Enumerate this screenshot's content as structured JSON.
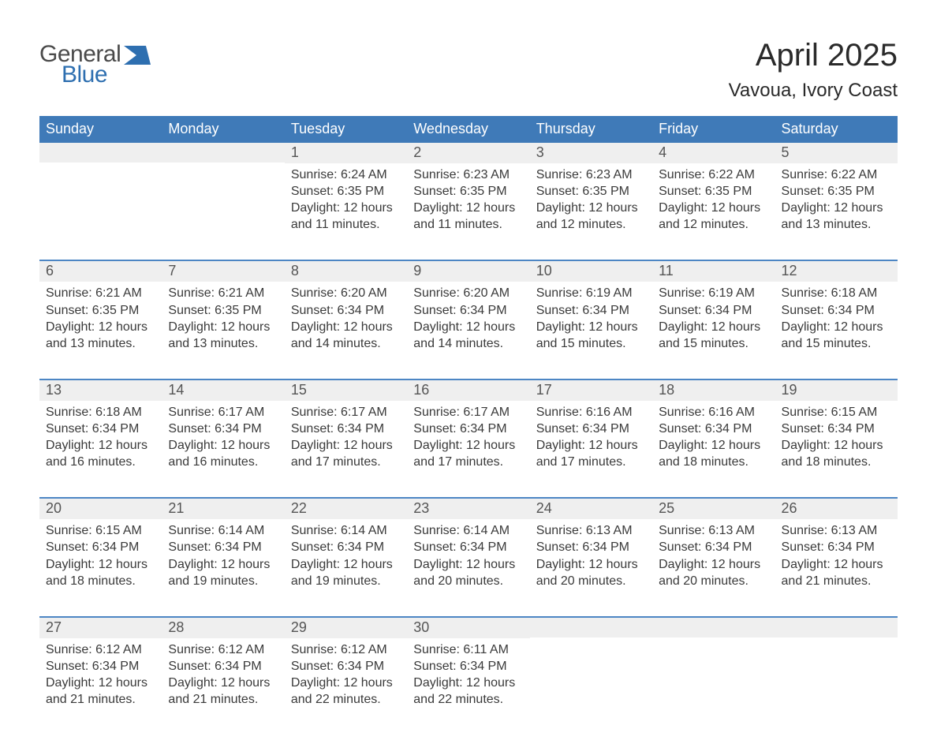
{
  "logo": {
    "line1": "General",
    "line2": "Blue",
    "icon_color": "#2e6fb0"
  },
  "header": {
    "month_title": "April 2025",
    "location": "Vavoua, Ivory Coast"
  },
  "colors": {
    "header_blue": "#3f7ab8",
    "row_separator": "#4d86c4",
    "daynum_bg": "#efefef",
    "background": "#ffffff",
    "text": "#3a3a3a"
  },
  "calendar": {
    "weekday_labels": [
      "Sunday",
      "Monday",
      "Tuesday",
      "Wednesday",
      "Thursday",
      "Friday",
      "Saturday"
    ],
    "weeks": [
      [
        null,
        null,
        {
          "day": "1",
          "sunrise": "Sunrise: 6:24 AM",
          "sunset": "Sunset: 6:35 PM",
          "daylight1": "Daylight: 12 hours",
          "daylight2": "and 11 minutes."
        },
        {
          "day": "2",
          "sunrise": "Sunrise: 6:23 AM",
          "sunset": "Sunset: 6:35 PM",
          "daylight1": "Daylight: 12 hours",
          "daylight2": "and 11 minutes."
        },
        {
          "day": "3",
          "sunrise": "Sunrise: 6:23 AM",
          "sunset": "Sunset: 6:35 PM",
          "daylight1": "Daylight: 12 hours",
          "daylight2": "and 12 minutes."
        },
        {
          "day": "4",
          "sunrise": "Sunrise: 6:22 AM",
          "sunset": "Sunset: 6:35 PM",
          "daylight1": "Daylight: 12 hours",
          "daylight2": "and 12 minutes."
        },
        {
          "day": "5",
          "sunrise": "Sunrise: 6:22 AM",
          "sunset": "Sunset: 6:35 PM",
          "daylight1": "Daylight: 12 hours",
          "daylight2": "and 13 minutes."
        }
      ],
      [
        {
          "day": "6",
          "sunrise": "Sunrise: 6:21 AM",
          "sunset": "Sunset: 6:35 PM",
          "daylight1": "Daylight: 12 hours",
          "daylight2": "and 13 minutes."
        },
        {
          "day": "7",
          "sunrise": "Sunrise: 6:21 AM",
          "sunset": "Sunset: 6:35 PM",
          "daylight1": "Daylight: 12 hours",
          "daylight2": "and 13 minutes."
        },
        {
          "day": "8",
          "sunrise": "Sunrise: 6:20 AM",
          "sunset": "Sunset: 6:34 PM",
          "daylight1": "Daylight: 12 hours",
          "daylight2": "and 14 minutes."
        },
        {
          "day": "9",
          "sunrise": "Sunrise: 6:20 AM",
          "sunset": "Sunset: 6:34 PM",
          "daylight1": "Daylight: 12 hours",
          "daylight2": "and 14 minutes."
        },
        {
          "day": "10",
          "sunrise": "Sunrise: 6:19 AM",
          "sunset": "Sunset: 6:34 PM",
          "daylight1": "Daylight: 12 hours",
          "daylight2": "and 15 minutes."
        },
        {
          "day": "11",
          "sunrise": "Sunrise: 6:19 AM",
          "sunset": "Sunset: 6:34 PM",
          "daylight1": "Daylight: 12 hours",
          "daylight2": "and 15 minutes."
        },
        {
          "day": "12",
          "sunrise": "Sunrise: 6:18 AM",
          "sunset": "Sunset: 6:34 PM",
          "daylight1": "Daylight: 12 hours",
          "daylight2": "and 15 minutes."
        }
      ],
      [
        {
          "day": "13",
          "sunrise": "Sunrise: 6:18 AM",
          "sunset": "Sunset: 6:34 PM",
          "daylight1": "Daylight: 12 hours",
          "daylight2": "and 16 minutes."
        },
        {
          "day": "14",
          "sunrise": "Sunrise: 6:17 AM",
          "sunset": "Sunset: 6:34 PM",
          "daylight1": "Daylight: 12 hours",
          "daylight2": "and 16 minutes."
        },
        {
          "day": "15",
          "sunrise": "Sunrise: 6:17 AM",
          "sunset": "Sunset: 6:34 PM",
          "daylight1": "Daylight: 12 hours",
          "daylight2": "and 17 minutes."
        },
        {
          "day": "16",
          "sunrise": "Sunrise: 6:17 AM",
          "sunset": "Sunset: 6:34 PM",
          "daylight1": "Daylight: 12 hours",
          "daylight2": "and 17 minutes."
        },
        {
          "day": "17",
          "sunrise": "Sunrise: 6:16 AM",
          "sunset": "Sunset: 6:34 PM",
          "daylight1": "Daylight: 12 hours",
          "daylight2": "and 17 minutes."
        },
        {
          "day": "18",
          "sunrise": "Sunrise: 6:16 AM",
          "sunset": "Sunset: 6:34 PM",
          "daylight1": "Daylight: 12 hours",
          "daylight2": "and 18 minutes."
        },
        {
          "day": "19",
          "sunrise": "Sunrise: 6:15 AM",
          "sunset": "Sunset: 6:34 PM",
          "daylight1": "Daylight: 12 hours",
          "daylight2": "and 18 minutes."
        }
      ],
      [
        {
          "day": "20",
          "sunrise": "Sunrise: 6:15 AM",
          "sunset": "Sunset: 6:34 PM",
          "daylight1": "Daylight: 12 hours",
          "daylight2": "and 18 minutes."
        },
        {
          "day": "21",
          "sunrise": "Sunrise: 6:14 AM",
          "sunset": "Sunset: 6:34 PM",
          "daylight1": "Daylight: 12 hours",
          "daylight2": "and 19 minutes."
        },
        {
          "day": "22",
          "sunrise": "Sunrise: 6:14 AM",
          "sunset": "Sunset: 6:34 PM",
          "daylight1": "Daylight: 12 hours",
          "daylight2": "and 19 minutes."
        },
        {
          "day": "23",
          "sunrise": "Sunrise: 6:14 AM",
          "sunset": "Sunset: 6:34 PM",
          "daylight1": "Daylight: 12 hours",
          "daylight2": "and 20 minutes."
        },
        {
          "day": "24",
          "sunrise": "Sunrise: 6:13 AM",
          "sunset": "Sunset: 6:34 PM",
          "daylight1": "Daylight: 12 hours",
          "daylight2": "and 20 minutes."
        },
        {
          "day": "25",
          "sunrise": "Sunrise: 6:13 AM",
          "sunset": "Sunset: 6:34 PM",
          "daylight1": "Daylight: 12 hours",
          "daylight2": "and 20 minutes."
        },
        {
          "day": "26",
          "sunrise": "Sunrise: 6:13 AM",
          "sunset": "Sunset: 6:34 PM",
          "daylight1": "Daylight: 12 hours",
          "daylight2": "and 21 minutes."
        }
      ],
      [
        {
          "day": "27",
          "sunrise": "Sunrise: 6:12 AM",
          "sunset": "Sunset: 6:34 PM",
          "daylight1": "Daylight: 12 hours",
          "daylight2": "and 21 minutes."
        },
        {
          "day": "28",
          "sunrise": "Sunrise: 6:12 AM",
          "sunset": "Sunset: 6:34 PM",
          "daylight1": "Daylight: 12 hours",
          "daylight2": "and 21 minutes."
        },
        {
          "day": "29",
          "sunrise": "Sunrise: 6:12 AM",
          "sunset": "Sunset: 6:34 PM",
          "daylight1": "Daylight: 12 hours",
          "daylight2": "and 22 minutes."
        },
        {
          "day": "30",
          "sunrise": "Sunrise: 6:11 AM",
          "sunset": "Sunset: 6:34 PM",
          "daylight1": "Daylight: 12 hours",
          "daylight2": "and 22 minutes."
        },
        null,
        null,
        null
      ]
    ]
  }
}
